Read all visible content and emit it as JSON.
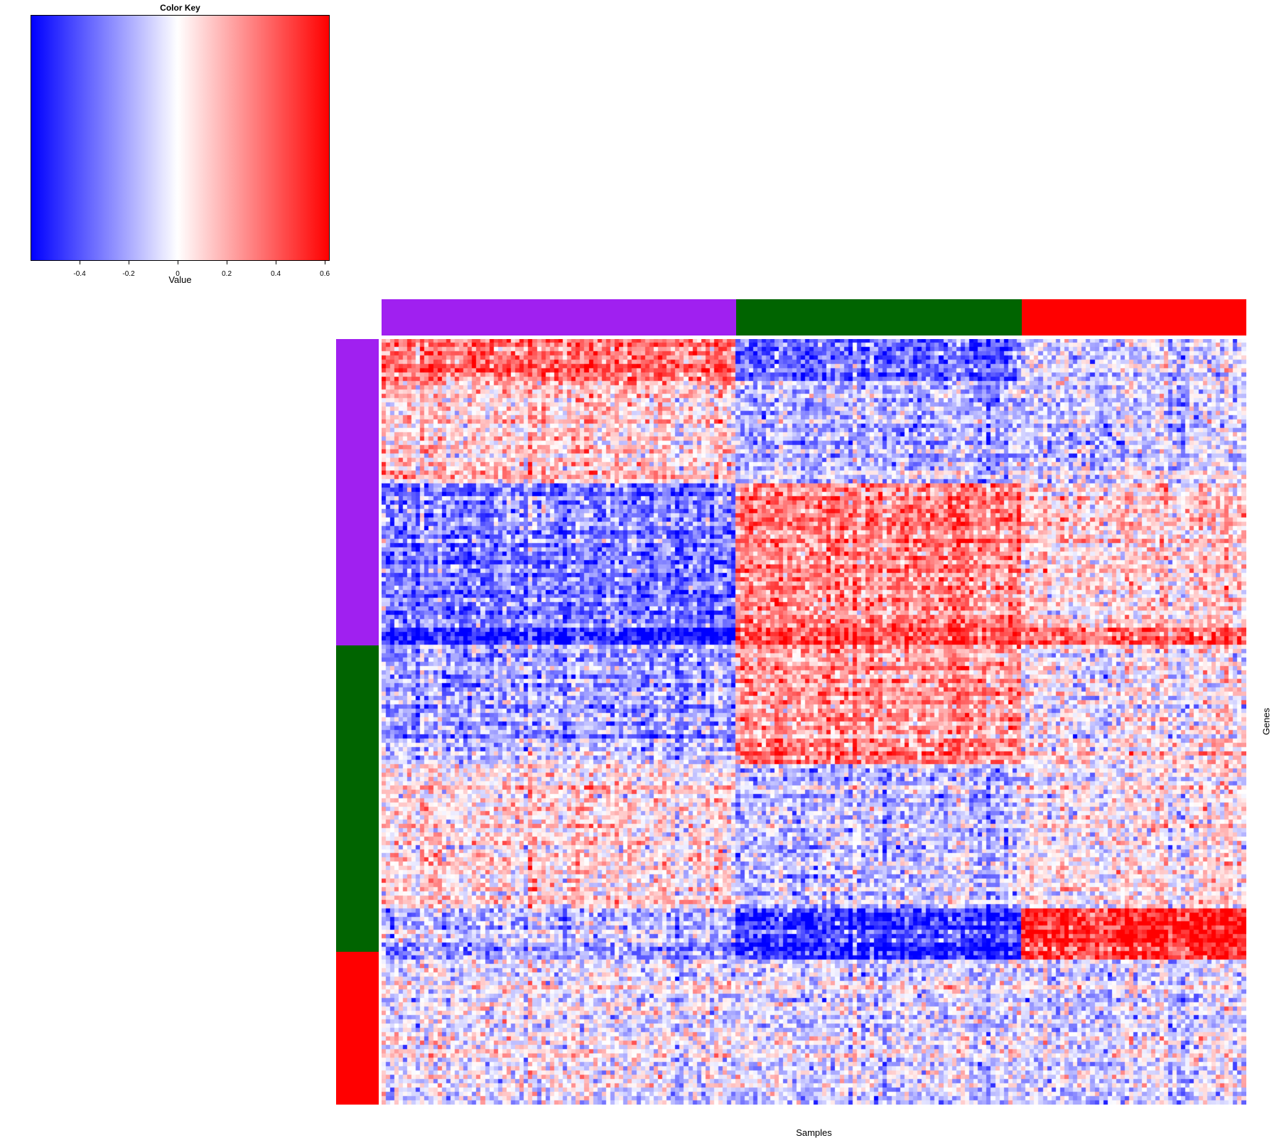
{
  "chart_data": {
    "type": "heatmap",
    "title": "",
    "xlabel": "Samples",
    "ylabel": "Genes",
    "color_key": {
      "title": "Color Key",
      "label": "Value",
      "range": [
        -0.6,
        0.62
      ],
      "ticks": [
        "-0.4",
        "-0.2",
        "0",
        "0.2",
        "0.4",
        "0.6"
      ],
      "tick_values": [
        -0.4,
        -0.2,
        0,
        0.2,
        0.4,
        0.6
      ],
      "colors": [
        "#0000ff",
        "#ffffff",
        "#ff0000"
      ]
    },
    "n_columns": 200,
    "n_rows": 180,
    "column_groups": [
      {
        "color": "#a020f0",
        "count": 82
      },
      {
        "color": "#006400",
        "count": 66
      },
      {
        "color": "#ff0000",
        "count": 52
      }
    ],
    "row_groups": [
      {
        "color": "#a020f0",
        "count": 72
      },
      {
        "color": "#006400",
        "count": 72
      },
      {
        "color": "#ff0000",
        "count": 36
      }
    ],
    "blocks": [
      {
        "rows": [
          0,
          10
        ],
        "cols": [
          0,
          82
        ],
        "mean": 0.35
      },
      {
        "rows": [
          0,
          10
        ],
        "cols": [
          82,
          148
        ],
        "mean": -0.35
      },
      {
        "rows": [
          0,
          10
        ],
        "cols": [
          148,
          200
        ],
        "mean": -0.1
      },
      {
        "rows": [
          10,
          34
        ],
        "cols": [
          0,
          82
        ],
        "mean": 0.12
      },
      {
        "rows": [
          10,
          34
        ],
        "cols": [
          82,
          148
        ],
        "mean": -0.15
      },
      {
        "rows": [
          10,
          34
        ],
        "cols": [
          148,
          200
        ],
        "mean": -0.1
      },
      {
        "rows": [
          34,
          68
        ],
        "cols": [
          0,
          82
        ],
        "mean": -0.3
      },
      {
        "rows": [
          34,
          68
        ],
        "cols": [
          82,
          148
        ],
        "mean": 0.3
      },
      {
        "rows": [
          34,
          68
        ],
        "cols": [
          148,
          200
        ],
        "mean": 0.1
      },
      {
        "rows": [
          68,
          72
        ],
        "cols": [
          0,
          82
        ],
        "mean": -0.55
      },
      {
        "rows": [
          68,
          72
        ],
        "cols": [
          82,
          148
        ],
        "mean": 0.45
      },
      {
        "rows": [
          68,
          72
        ],
        "cols": [
          148,
          200
        ],
        "mean": 0.4
      },
      {
        "rows": [
          72,
          100
        ],
        "cols": [
          0,
          82
        ],
        "mean": -0.2
      },
      {
        "rows": [
          72,
          100
        ],
        "cols": [
          82,
          148
        ],
        "mean": 0.25
      },
      {
        "rows": [
          72,
          100
        ],
        "cols": [
          148,
          200
        ],
        "mean": 0.0
      },
      {
        "rows": [
          100,
          134
        ],
        "cols": [
          0,
          82
        ],
        "mean": 0.05
      },
      {
        "rows": [
          100,
          134
        ],
        "cols": [
          82,
          148
        ],
        "mean": -0.15
      },
      {
        "rows": [
          100,
          134
        ],
        "cols": [
          148,
          200
        ],
        "mean": 0.0
      },
      {
        "rows": [
          134,
          146
        ],
        "cols": [
          0,
          82
        ],
        "mean": -0.2
      },
      {
        "rows": [
          134,
          146
        ],
        "cols": [
          82,
          148
        ],
        "mean": -0.5
      },
      {
        "rows": [
          134,
          146
        ],
        "cols": [
          148,
          200
        ],
        "mean": 0.5
      },
      {
        "rows": [
          146,
          180
        ],
        "cols": [
          0,
          82
        ],
        "mean": 0.0
      },
      {
        "rows": [
          146,
          180
        ],
        "cols": [
          82,
          148
        ],
        "mean": -0.05
      },
      {
        "rows": [
          146,
          180
        ],
        "cols": [
          148,
          200
        ],
        "mean": -0.05
      }
    ]
  }
}
